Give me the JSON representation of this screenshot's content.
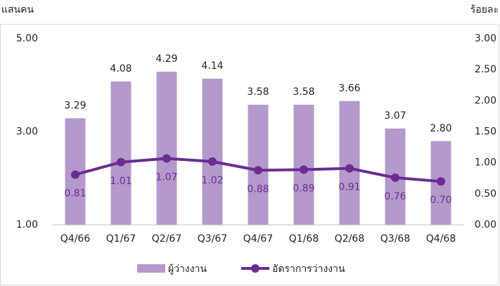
{
  "chart_data": {
    "type": "bar-line",
    "y_label": "แสนคน",
    "y2_label": "ร้อยละ",
    "categories": [
      "Q4/66",
      "Q1/67",
      "Q2/67",
      "Q3/67",
      "Q4/67",
      "Q1/68",
      "Q2/68",
      "Q3/68",
      "Q4/68"
    ],
    "series": [
      {
        "name": "ผู้ว่างงาน",
        "type": "bar",
        "color": "#b499cc",
        "values": [
          3.29,
          4.08,
          4.29,
          4.14,
          3.58,
          3.58,
          3.66,
          3.07,
          2.8
        ],
        "value_labels": [
          "3.29",
          "4.08",
          "4.29",
          "4.14",
          "3.58",
          "3.58",
          "3.66",
          "3.07",
          "2.80"
        ]
      },
      {
        "name": "อัตราการว่างงาน",
        "type": "line",
        "axis": "y2",
        "color": "#6b2d91",
        "values": [
          0.81,
          1.01,
          1.07,
          1.02,
          0.88,
          0.89,
          0.91,
          0.76,
          0.7
        ],
        "value_labels": [
          "0.81",
          "1.01",
          "1.07",
          "1.02",
          "0.88",
          "0.89",
          "0.91",
          "0.76",
          "0.70"
        ]
      }
    ],
    "ylim": [
      1,
      5
    ],
    "yticks": [
      {
        "value": 1,
        "label": "1.00"
      },
      {
        "value": 3,
        "label": "3.00"
      },
      {
        "value": 5,
        "label": "5.00"
      }
    ],
    "y2lim": [
      0,
      3
    ],
    "y2ticks": [
      {
        "value": 0,
        "label": "0.00"
      },
      {
        "value": 0.5,
        "label": "0.50"
      },
      {
        "value": 1,
        "label": "1.00"
      },
      {
        "value": 1.5,
        "label": "1.50"
      },
      {
        "value": 2,
        "label": "2.00"
      },
      {
        "value": 2.5,
        "label": "2.50"
      },
      {
        "value": 3,
        "label": "3.00"
      }
    ],
    "grid": false
  }
}
